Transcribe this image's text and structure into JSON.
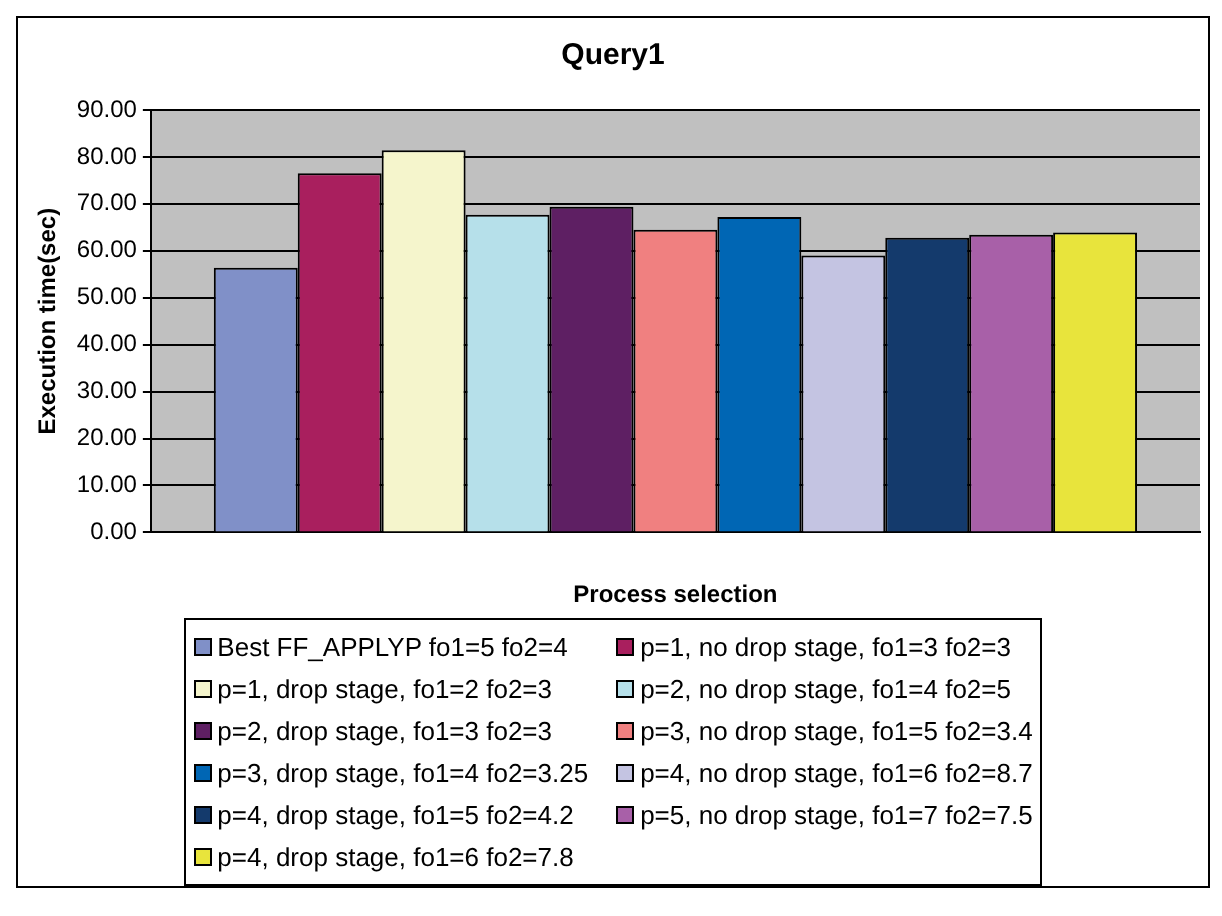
{
  "chart_data": {
    "type": "bar",
    "title": "Query1",
    "xlabel": "Process selection",
    "ylabel": "Execution time(sec)",
    "categories": [
      null
    ],
    "series": [
      {
        "name": "Best FF_APPLYP fo1=5 fo2=4",
        "color": "#8090c8",
        "values": [
          56.4
        ]
      },
      {
        "name": "p=1, no drop stage, fo1=3 fo2=3",
        "color": "#a91f5e",
        "values": [
          76.5
        ]
      },
      {
        "name": "p=1, drop stage, fo1=2 fo2=3",
        "color": "#f5f5cc",
        "values": [
          81.4
        ]
      },
      {
        "name": "p=2, no drop stage, fo1=4 fo2=5",
        "color": "#b6e0ea",
        "values": [
          67.7
        ]
      },
      {
        "name": "p=2, drop stage, fo1=3 fo2=3",
        "color": "#5e1f63",
        "values": [
          69.4
        ]
      },
      {
        "name": "p=3, no drop stage, fo1=5 fo2=3.4",
        "color": "#f08080",
        "values": [
          64.5
        ]
      },
      {
        "name": "p=3, drop stage, fo1=4 fo2=3.25",
        "color": "#0066b4",
        "values": [
          67.2
        ]
      },
      {
        "name": "p=4, no drop stage, fo1=6 fo2=8.7",
        "color": "#c4c4e2",
        "values": [
          59.0
        ]
      },
      {
        "name": "p=4, drop stage, fo1=5 fo2=4.2",
        "color": "#143a6c",
        "values": [
          62.8
        ]
      },
      {
        "name": "p=5, no drop stage, fo1=7 fo2=7.5",
        "color": "#a860a8",
        "values": [
          63.4
        ]
      },
      {
        "name": "p=4, drop stage, fo1=6 fo2=7.8",
        "color": "#e8e43c",
        "values": [
          63.9
        ]
      }
    ],
    "ylim": [
      0,
      90
    ],
    "yticks": [
      {
        "value": 0,
        "label": "0.00"
      },
      {
        "value": 10,
        "label": "10.00"
      },
      {
        "value": 20,
        "label": "20.00"
      },
      {
        "value": 30,
        "label": "30.00"
      },
      {
        "value": 40,
        "label": "40.00"
      },
      {
        "value": 50,
        "label": "50.00"
      },
      {
        "value": 60,
        "label": "60.00"
      },
      {
        "value": 70,
        "label": "70.00"
      },
      {
        "value": 80,
        "label": "80.00"
      },
      {
        "value": 90,
        "label": "90.00"
      }
    ],
    "grid": "y",
    "legend": "bottom"
  }
}
